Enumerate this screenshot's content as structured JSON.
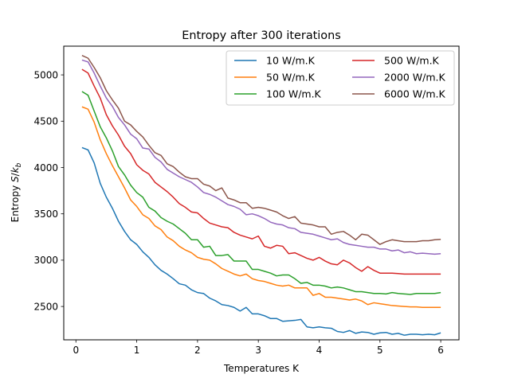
{
  "chart_data": {
    "type": "line",
    "title": "Entropy after 300 iterations",
    "xlabel": "Temperatures K",
    "ylabel": "Entropy S/k_b",
    "ylabel_parts": {
      "prefix": "Entropy ",
      "symbol": "S",
      "slash": "/",
      "k": "k",
      "sub": "b"
    },
    "xlim": [
      -0.2,
      6.3
    ],
    "ylim": [
      2140,
      5310
    ],
    "xticks": [
      0,
      1,
      2,
      3,
      4,
      5,
      6
    ],
    "yticks": [
      2500,
      3000,
      3500,
      4000,
      4500,
      5000
    ],
    "grid": false,
    "legend_position": "top-right",
    "legend_columns": 2,
    "x": [
      0.1,
      0.2,
      0.3,
      0.4,
      0.5,
      0.6,
      0.7,
      0.8,
      0.9,
      1.0,
      1.1,
      1.2,
      1.3,
      1.4,
      1.5,
      1.6,
      1.7,
      1.8,
      1.9,
      2.0,
      2.1,
      2.2,
      2.3,
      2.4,
      2.5,
      2.6,
      2.7,
      2.8,
      2.9,
      3.0,
      3.1,
      3.2,
      3.3,
      3.4,
      3.5,
      3.6,
      3.7,
      3.8,
      3.9,
      4.0,
      4.1,
      4.2,
      4.3,
      4.4,
      4.5,
      4.6,
      4.7,
      4.8,
      4.9,
      5.0,
      5.1,
      5.2,
      5.3,
      5.4,
      5.5,
      5.6,
      5.7,
      5.8,
      5.9,
      6.0
    ],
    "series": [
      {
        "name": "10 W/m.K",
        "color": "#1f77b4",
        "values": [
          4215,
          4190,
          4050,
          3830,
          3680,
          3560,
          3420,
          3310,
          3220,
          3170,
          3090,
          3030,
          2950,
          2890,
          2850,
          2800,
          2745,
          2730,
          2680,
          2650,
          2640,
          2590,
          2560,
          2520,
          2510,
          2490,
          2450,
          2490,
          2420,
          2420,
          2400,
          2370,
          2370,
          2340,
          2345,
          2350,
          2360,
          2280,
          2270,
          2280,
          2270,
          2265,
          2230,
          2220,
          2240,
          2210,
          2225,
          2220,
          2200,
          2215,
          2220,
          2200,
          2210,
          2190,
          2200,
          2200,
          2195,
          2200,
          2195,
          2215
        ]
      },
      {
        "name": "50 W/m.K",
        "color": "#ff7f0e",
        "values": [
          4655,
          4630,
          4490,
          4300,
          4150,
          4020,
          3900,
          3780,
          3650,
          3580,
          3490,
          3450,
          3370,
          3330,
          3250,
          3210,
          3150,
          3110,
          3080,
          3030,
          3010,
          3000,
          2960,
          2910,
          2880,
          2850,
          2830,
          2850,
          2800,
          2780,
          2770,
          2750,
          2730,
          2720,
          2730,
          2700,
          2700,
          2700,
          2620,
          2640,
          2600,
          2600,
          2590,
          2580,
          2570,
          2580,
          2560,
          2520,
          2540,
          2530,
          2520,
          2510,
          2505,
          2500,
          2495,
          2495,
          2490,
          2490,
          2490,
          2490
        ]
      },
      {
        "name": "100 W/m.K",
        "color": "#2ca02c",
        "values": [
          4820,
          4780,
          4610,
          4440,
          4320,
          4180,
          4010,
          3920,
          3810,
          3730,
          3680,
          3570,
          3530,
          3460,
          3420,
          3390,
          3340,
          3290,
          3220,
          3220,
          3140,
          3150,
          3050,
          3050,
          3060,
          2990,
          2990,
          2990,
          2900,
          2900,
          2880,
          2860,
          2830,
          2840,
          2840,
          2800,
          2750,
          2760,
          2730,
          2730,
          2720,
          2700,
          2710,
          2700,
          2680,
          2660,
          2660,
          2650,
          2640,
          2640,
          2635,
          2650,
          2640,
          2635,
          2630,
          2640,
          2640,
          2640,
          2640,
          2650
        ]
      },
      {
        "name": "500 W/m.K",
        "color": "#d62728",
        "values": [
          5060,
          5020,
          4880,
          4750,
          4570,
          4450,
          4350,
          4230,
          4150,
          4030,
          3970,
          3930,
          3840,
          3790,
          3740,
          3680,
          3610,
          3570,
          3520,
          3510,
          3450,
          3400,
          3380,
          3360,
          3350,
          3300,
          3270,
          3250,
          3230,
          3260,
          3150,
          3130,
          3160,
          3150,
          3070,
          3080,
          3050,
          3020,
          3000,
          3030,
          2990,
          2960,
          2950,
          3000,
          2970,
          2920,
          2880,
          2930,
          2890,
          2860,
          2860,
          2860,
          2855,
          2850,
          2850,
          2850,
          2850,
          2850,
          2850,
          2850
        ]
      },
      {
        "name": "2000 W/m.K",
        "color": "#9467bd",
        "values": [
          5160,
          5140,
          5020,
          4880,
          4750,
          4660,
          4540,
          4460,
          4360,
          4310,
          4210,
          4200,
          4110,
          4060,
          3980,
          3940,
          3900,
          3870,
          3840,
          3790,
          3730,
          3710,
          3680,
          3640,
          3600,
          3580,
          3550,
          3490,
          3500,
          3480,
          3450,
          3410,
          3390,
          3380,
          3350,
          3340,
          3300,
          3290,
          3280,
          3260,
          3240,
          3220,
          3230,
          3190,
          3170,
          3160,
          3150,
          3140,
          3140,
          3120,
          3120,
          3100,
          3110,
          3080,
          3090,
          3070,
          3075,
          3070,
          3065,
          3070
        ]
      },
      {
        "name": "6000 W/m.K",
        "color": "#8c564b",
        "values": [
          5210,
          5180,
          5080,
          4970,
          4830,
          4730,
          4640,
          4500,
          4460,
          4390,
          4330,
          4240,
          4160,
          4130,
          4040,
          4010,
          3950,
          3900,
          3880,
          3880,
          3820,
          3800,
          3750,
          3780,
          3670,
          3650,
          3620,
          3620,
          3560,
          3570,
          3560,
          3540,
          3520,
          3480,
          3450,
          3470,
          3400,
          3390,
          3380,
          3360,
          3360,
          3280,
          3300,
          3310,
          3270,
          3220,
          3280,
          3270,
          3220,
          3170,
          3200,
          3220,
          3210,
          3200,
          3200,
          3200,
          3210,
          3210,
          3220,
          3225
        ]
      }
    ]
  }
}
